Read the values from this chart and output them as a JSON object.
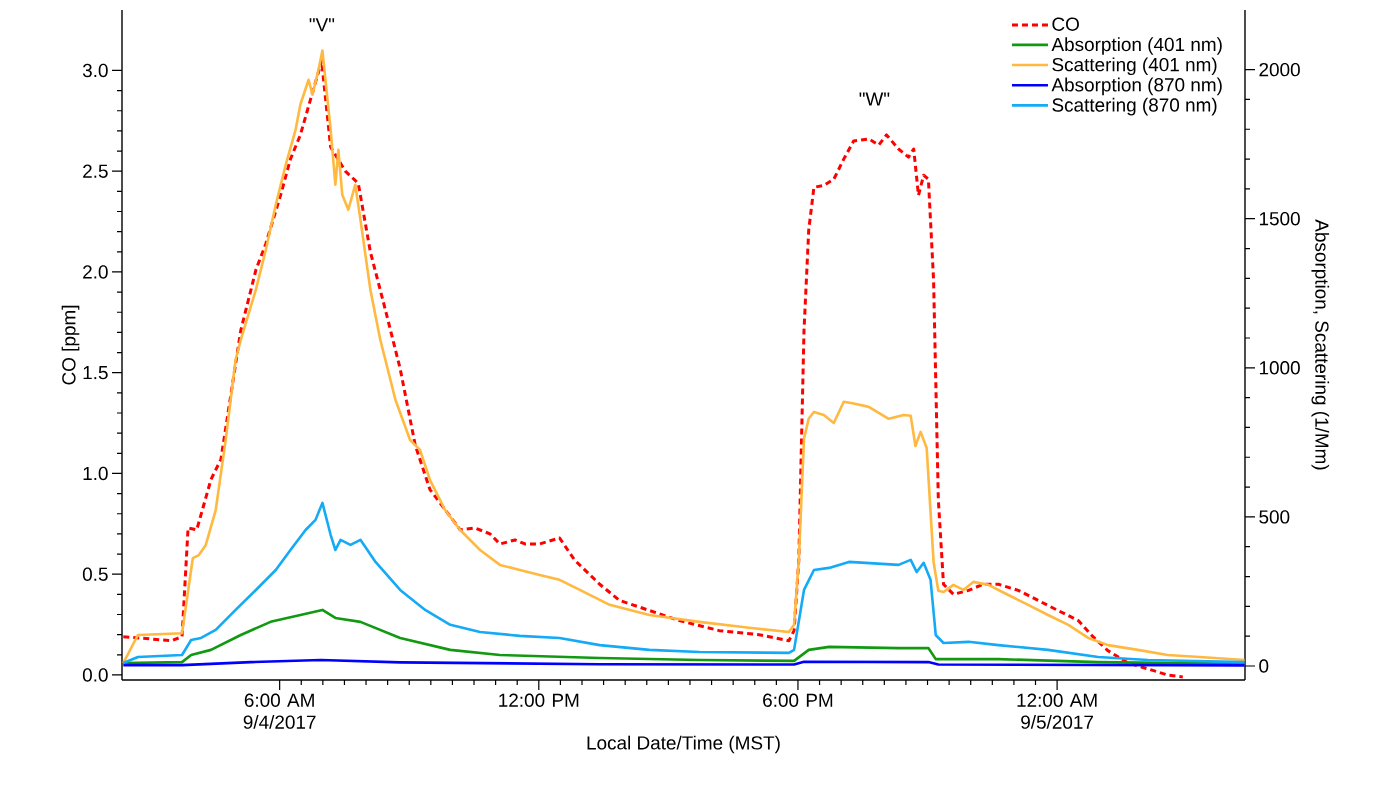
{
  "chart_data": {
    "type": "line",
    "xlabel": "Local Date/Time (MST)",
    "ylabel": "CO [ppm]",
    "y2label": "Absorption, Scattering (1/Mm)",
    "xlim": [
      2.35,
      28.35
    ],
    "xticks": [
      {
        "value": 6,
        "label": "6:00 AM 9/4/2017"
      },
      {
        "value": 12,
        "label": "12:00 PM"
      },
      {
        "value": 18,
        "label": "6:00 PM"
      },
      {
        "value": 24,
        "label": "12:00 AM 9/5/2017"
      }
    ],
    "ylim": [
      -0.025,
      3.3
    ],
    "yticks": [
      {
        "value": 0,
        "label": "0.0"
      },
      {
        "value": 0.5,
        "label": "0.5"
      },
      {
        "value": 1,
        "label": "1.0"
      },
      {
        "value": 1.5,
        "label": "1.5"
      },
      {
        "value": 2,
        "label": "2.0"
      },
      {
        "value": 2.5,
        "label": "2.5"
      },
      {
        "value": 3,
        "label": "3.0"
      }
    ],
    "y2lim": [
      -47,
      2200
    ],
    "y2ticks": [
      0,
      500,
      1000,
      1500,
      2000
    ],
    "legend": "top right",
    "marker": "none",
    "annotations": [
      "\"V\"",
      "\"W\""
    ],
    "series": [
      {
        "name": "CO",
        "color": "#ff0000",
        "line_style": "dashed",
        "x": [
          2.38,
          3.5,
          3.74,
          3.88,
          4.08,
          4.41,
          4.64,
          4.87,
          5.1,
          5.45,
          5.68,
          6.02,
          6.25,
          6.48,
          6.72,
          6.95,
          6.97,
          7.18,
          7.52,
          7.82,
          8.1,
          8.45,
          8.79,
          9.14,
          9.48,
          9.83,
          10.18,
          10.52,
          10.87,
          11.1,
          11.45,
          11.68,
          12.02,
          12.48,
          12.83,
          13.41,
          13.87,
          14.56,
          15.25,
          16.18,
          17.1,
          17.79,
          17.91,
          18.02,
          18.14,
          18.25,
          18.37,
          18.6,
          18.83,
          19.06,
          19.29,
          19.64,
          19.87,
          20.05,
          20.33,
          20.56,
          20.68,
          20.79,
          20.91,
          21.02,
          21.14,
          21.25,
          21.37,
          21.6,
          21.95,
          22.29,
          22.64,
          23.1,
          23.56,
          24.02,
          24.49,
          24.83,
          25.18,
          25.64,
          26.1,
          26.56,
          26.91
        ],
        "values": [
          0.19,
          0.17,
          0.19,
          0.73,
          0.72,
          0.97,
          1.07,
          1.39,
          1.71,
          2.01,
          2.14,
          2.38,
          2.56,
          2.68,
          2.86,
          3.03,
          3.05,
          2.62,
          2.5,
          2.44,
          2.1,
          1.81,
          1.52,
          1.14,
          0.92,
          0.82,
          0.72,
          0.73,
          0.7,
          0.65,
          0.67,
          0.65,
          0.65,
          0.68,
          0.57,
          0.45,
          0.37,
          0.32,
          0.27,
          0.22,
          0.2,
          0.17,
          0.22,
          0.57,
          1.71,
          2.21,
          2.42,
          2.43,
          2.46,
          2.56,
          2.65,
          2.66,
          2.63,
          2.68,
          2.61,
          2.57,
          2.61,
          2.38,
          2.48,
          2.46,
          1.96,
          0.87,
          0.45,
          0.4,
          0.42,
          0.45,
          0.45,
          0.42,
          0.37,
          0.32,
          0.27,
          0.19,
          0.12,
          0.06,
          0.03,
          0.0,
          -0.01
        ]
      },
      {
        "name": "Absorption (401 nm)",
        "color": "#119a11",
        "axis": "y2",
        "line_style": "solid",
        "x": [
          2.38,
          3.74,
          3.95,
          4.41,
          5.1,
          5.79,
          6.48,
          6.99,
          7.29,
          7.87,
          8.79,
          9.95,
          11.1,
          13.41,
          15.72,
          17.91,
          18.25,
          18.72,
          20.33,
          21.02,
          21.19,
          22.64,
          24.95,
          28.34
        ],
        "values": [
          10,
          13,
          37,
          54,
          104,
          148,
          171,
          188,
          161,
          148,
          94,
          54,
          37,
          27,
          20,
          17,
          54,
          64,
          60,
          60,
          23,
          23,
          13,
          7
        ]
      },
      {
        "name": "Scattering (401 nm)",
        "color": "#ffb940",
        "axis": "y2",
        "line_style": "solid",
        "x": [
          2.38,
          2.72,
          3.74,
          3.99,
          4.13,
          4.29,
          4.52,
          4.75,
          4.98,
          5.1,
          5.45,
          5.68,
          5.91,
          6.14,
          6.37,
          6.48,
          6.67,
          6.76,
          6.9,
          6.99,
          7.18,
          7.29,
          7.36,
          7.45,
          7.59,
          7.75,
          7.87,
          8.1,
          8.33,
          8.68,
          9.02,
          9.25,
          9.48,
          9.83,
          10.18,
          10.64,
          11.1,
          11.56,
          12.02,
          12.48,
          12.95,
          13.64,
          14.56,
          15.72,
          16.87,
          17.79,
          17.91,
          18.02,
          18.14,
          18.25,
          18.37,
          18.6,
          18.83,
          19.06,
          19.29,
          19.64,
          20.1,
          20.45,
          20.61,
          20.72,
          20.84,
          20.98,
          21.14,
          21.25,
          21.37,
          21.6,
          21.83,
          22.06,
          22.41,
          22.87,
          23.33,
          23.79,
          24.26,
          24.72,
          25.18,
          25.87,
          26.56,
          27.3,
          28.34
        ],
        "values": [
          10,
          104,
          110,
          362,
          372,
          406,
          523,
          758,
          1027,
          1094,
          1262,
          1396,
          1547,
          1681,
          1799,
          1883,
          1966,
          1916,
          2000,
          2064,
          1799,
          1614,
          1731,
          1580,
          1530,
          1614,
          1497,
          1262,
          1094,
          893,
          758,
          725,
          624,
          523,
          456,
          389,
          339,
          322,
          305,
          289,
          255,
          205,
          171,
          148,
          128,
          114,
          138,
          356,
          762,
          830,
          852,
          842,
          815,
          886,
          880,
          869,
          829,
          842,
          839,
          738,
          785,
          731,
          349,
          252,
          248,
          272,
          255,
          282,
          272,
          238,
          205,
          171,
          138,
          94,
          70,
          54,
          37,
          30,
          20
        ]
      },
      {
        "name": "Absorption (870 nm)",
        "color": "#0000ff",
        "axis": "y2",
        "line_style": "solid",
        "x": [
          2.38,
          3.74,
          5.33,
          6.95,
          8.79,
          13.41,
          17.91,
          18.14,
          21.02,
          21.25,
          28.34
        ],
        "values": [
          3,
          3,
          13,
          20,
          12,
          6,
          5,
          14,
          13,
          5,
          2
        ]
      },
      {
        "name": "Scattering (870 nm)",
        "color": "#14aaf5",
        "axis": "y2",
        "line_style": "solid",
        "x": [
          2.38,
          2.72,
          3.74,
          3.95,
          4.18,
          4.52,
          4.98,
          5.45,
          5.91,
          6.25,
          6.6,
          6.83,
          6.99,
          7.18,
          7.29,
          7.41,
          7.64,
          7.87,
          8.22,
          8.79,
          9.37,
          9.95,
          10.64,
          11.56,
          12.48,
          13.41,
          14.56,
          15.72,
          17.79,
          17.91,
          18.14,
          18.37,
          18.72,
          19.18,
          20.33,
          20.61,
          20.75,
          20.91,
          21.07,
          21.19,
          21.37,
          21.95,
          22.64,
          23.79,
          24.95,
          26.1,
          28.34
        ],
        "values": [
          10,
          30,
          37,
          87,
          94,
          121,
          188,
          255,
          322,
          389,
          456,
          490,
          547,
          440,
          389,
          423,
          406,
          423,
          349,
          255,
          188,
          138,
          114,
          101,
          94,
          70,
          54,
          47,
          44,
          54,
          255,
          322,
          329,
          349,
          339,
          356,
          315,
          346,
          289,
          104,
          77,
          81,
          70,
          54,
          30,
          20,
          13
        ]
      }
    ]
  }
}
